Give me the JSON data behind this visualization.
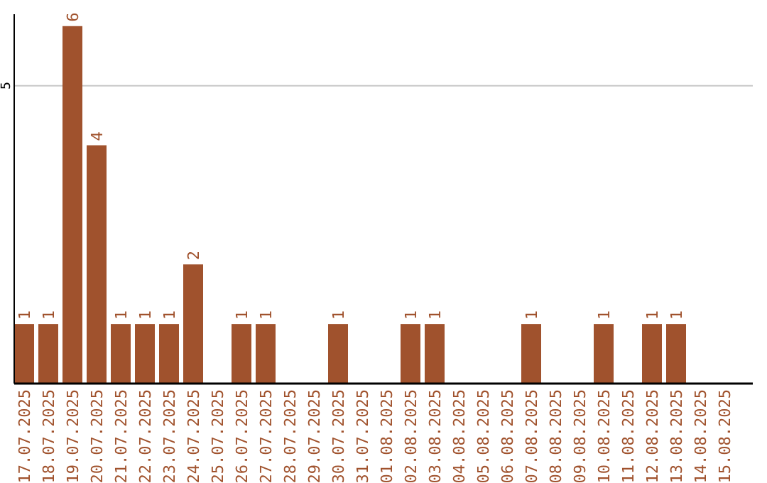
{
  "chart_data": {
    "type": "bar",
    "categories": [
      "17.07.2025",
      "18.07.2025",
      "19.07.2025",
      "20.07.2025",
      "21.07.2025",
      "22.07.2025",
      "23.07.2025",
      "24.07.2025",
      "25.07.2025",
      "26.07.2025",
      "27.07.2025",
      "28.07.2025",
      "29.07.2025",
      "30.07.2025",
      "31.07.2025",
      "01.08.2025",
      "02.08.2025",
      "03.08.2025",
      "04.08.2025",
      "05.08.2025",
      "06.08.2025",
      "07.08.2025",
      "08.08.2025",
      "09.08.2025",
      "10.08.2025",
      "11.08.2025",
      "12.08.2025",
      "13.08.2025",
      "14.08.2025",
      "15.08.2025"
    ],
    "values": [
      1,
      1,
      6,
      4,
      1,
      1,
      1,
      2,
      0,
      1,
      1,
      0,
      0,
      1,
      0,
      0,
      1,
      1,
      0,
      0,
      0,
      1,
      0,
      0,
      1,
      0,
      1,
      1,
      0,
      0
    ],
    "value_labels": [
      "1",
      "1",
      "6",
      "4",
      "1",
      "1",
      "1",
      "2",
      null,
      "1",
      "1",
      null,
      null,
      "1",
      null,
      null,
      "1",
      "1",
      null,
      null,
      null,
      "1",
      null,
      null,
      "1",
      null,
      "1",
      "1",
      null,
      null
    ],
    "color": "#a0522d",
    "ylim": [
      0,
      6.2
    ],
    "yticks": [
      5
    ],
    "grid": "y"
  }
}
